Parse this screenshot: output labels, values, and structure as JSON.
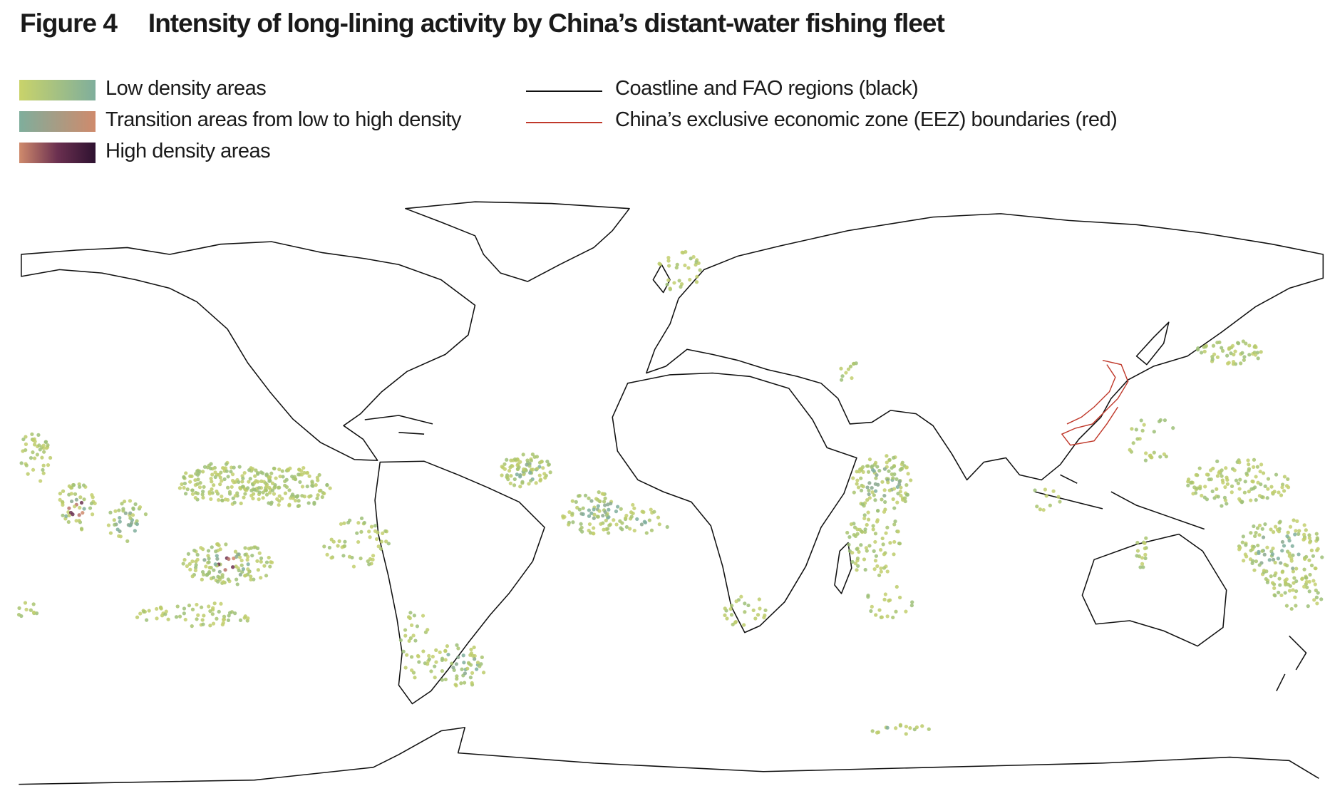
{
  "figure": {
    "label": "Figure 4",
    "title": "Intensity of long-lining activity by China’s distant-water fishing fleet"
  },
  "legend": {
    "density": [
      "Low density areas",
      "Transition areas from low to high density",
      "High density areas"
    ],
    "lines": [
      "Coastline and FAO regions (black)",
      "China’s exclusive economic zone (EEZ) boundaries (red)"
    ]
  }
}
